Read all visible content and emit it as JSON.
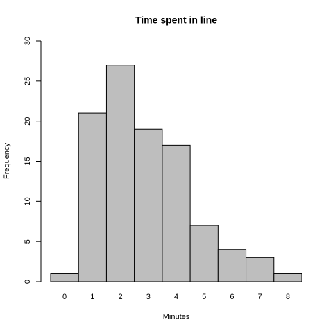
{
  "chart_data": {
    "type": "bar",
    "title": "Time spent in line",
    "x_label": "Minutes",
    "y_label": "Frequency",
    "categories": [
      "0",
      "1",
      "2",
      "3",
      "4",
      "5",
      "6",
      "7",
      "8"
    ],
    "values": [
      1,
      21,
      27,
      19,
      17,
      7,
      4,
      3,
      1
    ],
    "color": "#bebebe",
    "ylim": [
      0,
      30
    ],
    "yticks": [
      0,
      5,
      10,
      15,
      20,
      25,
      30
    ]
  }
}
